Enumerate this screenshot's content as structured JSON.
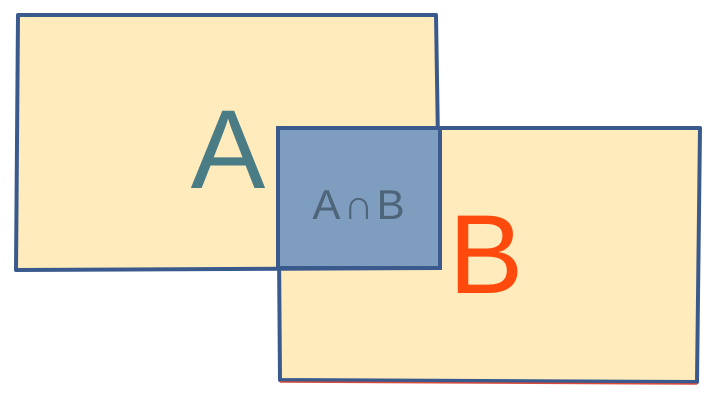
{
  "labels": {
    "a": "A",
    "b": "B",
    "intersection": "A∩B"
  },
  "colors": {
    "fill": "#FFEBBC",
    "border": "#3A5A8E",
    "border_b_accent": "#D94A3A",
    "intersection_fill": "#7E9DBF",
    "label_a": "#4A7C86",
    "label_b": "#FF4A0D",
    "label_intersection": "#4E6478"
  }
}
